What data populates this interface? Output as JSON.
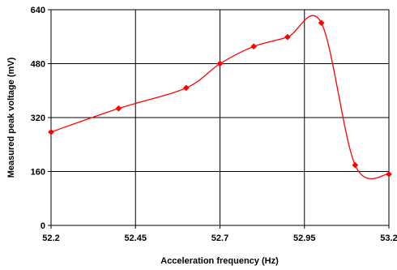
{
  "chart_data": {
    "type": "line",
    "title": "",
    "xlabel": "Acceleration frequency (Hz)",
    "ylabel": "Measured peak voltage (mV)",
    "xlim": [
      52.2,
      53.2
    ],
    "ylim": [
      0,
      640
    ],
    "xticks": [
      "52.2",
      "52.45",
      "52.7",
      "52.95",
      "53.2"
    ],
    "yticks": [
      "0",
      "160",
      "320",
      "480",
      "640"
    ],
    "grid": true,
    "smooth": true,
    "series": [
      {
        "color": "#ff0000",
        "marker": "diamond",
        "x": [
          52.2,
          52.4,
          52.6,
          52.7,
          52.8,
          52.9,
          53.0,
          53.1,
          53.2
        ],
        "y": [
          277,
          347,
          408,
          480,
          531,
          559,
          601,
          179,
          152
        ]
      }
    ]
  }
}
